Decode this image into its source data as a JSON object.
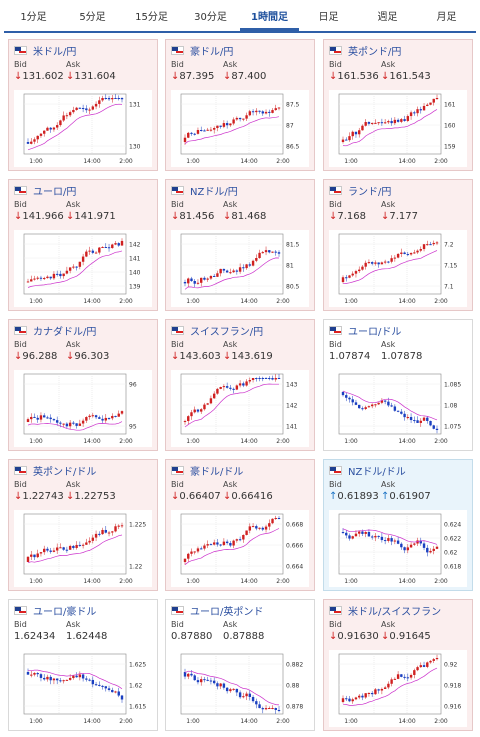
{
  "tabs": [
    "1分足",
    "5分足",
    "15分足",
    "30分足",
    "1時間足",
    "日足",
    "週足",
    "月足"
  ],
  "active_tab": "1時間足",
  "bid_label": "Bid",
  "ask_label": "Ask",
  "colors": {
    "up": "#1a72c4",
    "down": "#d02020",
    "ma": "#cc33cc",
    "candle_up": "#d02020",
    "candle_down": "#1a3fc0"
  },
  "cards": [
    {
      "name": "米ドル/円",
      "bid": "131.602",
      "ask": "131.604",
      "dir": "down",
      "theme": "pink",
      "ticks": [
        "131",
        "130"
      ],
      "xlabels": [
        "1:00",
        "14:00",
        "2:00"
      ]
    },
    {
      "name": "豪ドル/円",
      "bid": "87.395",
      "ask": "87.400",
      "dir": "down",
      "theme": "pink",
      "ticks": [
        "87.5",
        "87",
        "86.5"
      ],
      "xlabels": [
        "1:00",
        "14:00",
        "2:00"
      ]
    },
    {
      "name": "英ポンド/円",
      "bid": "161.536",
      "ask": "161.543",
      "dir": "down",
      "theme": "pink",
      "ticks": [
        "161",
        "160",
        "159"
      ],
      "xlabels": [
        "1:00",
        "14:00",
        "2:00"
      ]
    },
    {
      "name": "ユーロ/円",
      "bid": "141.966",
      "ask": "141.971",
      "dir": "down",
      "theme": "pink",
      "ticks": [
        "142",
        "141",
        "140",
        "139"
      ],
      "xlabels": [
        "1:00",
        "14:00",
        "2:00"
      ]
    },
    {
      "name": "NZドル/円",
      "bid": "81.456",
      "ask": "81.468",
      "dir": "down",
      "theme": "pink",
      "ticks": [
        "81.5",
        "81",
        "80.5"
      ],
      "xlabels": [
        "1:00",
        "14:00",
        "2:00"
      ]
    },
    {
      "name": "ランド/円",
      "bid": "7.168",
      "ask": "7.177",
      "dir": "down",
      "theme": "pink",
      "ticks": [
        "7.2",
        "7.15",
        "7.1"
      ],
      "xlabels": [
        "1:00",
        "14:00",
        "2:00"
      ]
    },
    {
      "name": "カナダドル/円",
      "bid": "96.288",
      "ask": "96.303",
      "dir": "down",
      "theme": "pink",
      "ticks": [
        "96",
        "95"
      ],
      "xlabels": [
        "1:00",
        "14:00",
        "2:00"
      ]
    },
    {
      "name": "スイスフラン/円",
      "bid": "143.603",
      "ask": "143.619",
      "dir": "down",
      "theme": "pink",
      "ticks": [
        "143",
        "142",
        "141"
      ],
      "xlabels": [
        "1:00",
        "14:00",
        "2:00"
      ]
    },
    {
      "name": "ユーロ/ドル",
      "bid": "1.07874",
      "ask": "1.07878",
      "dir": "none",
      "theme": "plain",
      "ticks": [
        "1.085",
        "1.08",
        "1.075"
      ],
      "xlabels": [
        "1:00",
        "14:00",
        "2:00"
      ]
    },
    {
      "name": "英ポンド/ドル",
      "bid": "1.22743",
      "ask": "1.22753",
      "dir": "down",
      "theme": "pink",
      "ticks": [
        "1.225",
        "1.22"
      ],
      "xlabels": [
        "1:00",
        "14:00",
        "2:00"
      ]
    },
    {
      "name": "豪ドル/ドル",
      "bid": "0.66407",
      "ask": "0.66416",
      "dir": "down",
      "theme": "pink",
      "ticks": [
        "0.668",
        "0.666",
        "0.664"
      ],
      "xlabels": [
        "1:00",
        "14:00",
        "2:00"
      ]
    },
    {
      "name": "NZドル/ドル",
      "bid": "0.61893",
      "ask": "0.61907",
      "dir": "up",
      "theme": "blue",
      "ticks": [
        "0.624",
        "0.622",
        "0.62",
        "0.618"
      ],
      "xlabels": [
        "1:00",
        "14:00",
        "2:00"
      ]
    },
    {
      "name": "ユーロ/豪ドル",
      "bid": "1.62434",
      "ask": "1.62448",
      "dir": "none",
      "theme": "plain",
      "ticks": [
        "1.625",
        "1.62",
        "1.615"
      ],
      "xlabels": [
        "1:00",
        "14:00",
        "2:00"
      ]
    },
    {
      "name": "ユーロ/英ポンド",
      "bid": "0.87880",
      "ask": "0.87888",
      "dir": "none",
      "theme": "plain",
      "ticks": [
        "0.882",
        "0.88",
        "0.878"
      ],
      "xlabels": [
        "1:00",
        "14:00",
        "2:00"
      ]
    },
    {
      "name": "米ドル/スイスフラン",
      "bid": "0.91630",
      "ask": "0.91645",
      "dir": "down",
      "theme": "pink",
      "ticks": [
        "0.92",
        "0.918",
        "0.916"
      ],
      "xlabels": [
        "1:00",
        "14:00",
        "2:00"
      ]
    }
  ]
}
